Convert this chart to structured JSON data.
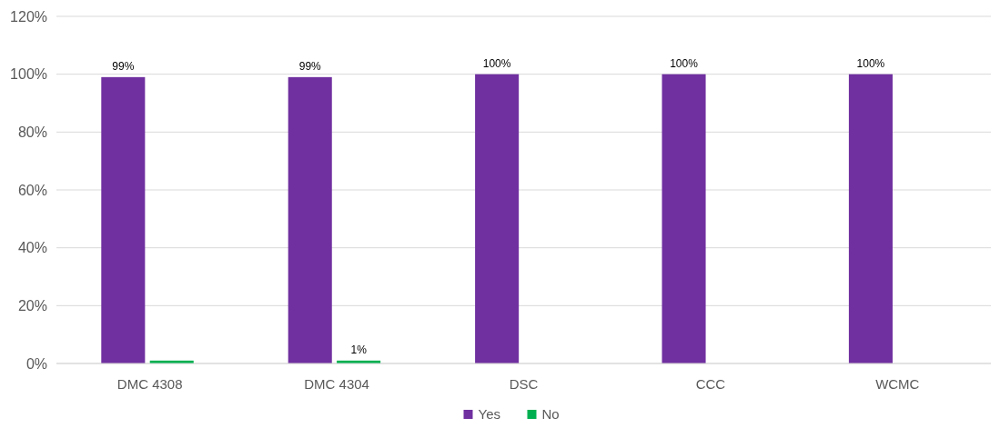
{
  "chart_data": {
    "type": "bar",
    "categories": [
      "DMC 4308",
      "DMC 4304",
      "DSC",
      "CCC",
      "WCMC"
    ],
    "series": [
      {
        "name": "Yes",
        "color": "#7030a0",
        "values": [
          99,
          99,
          100,
          100,
          100
        ],
        "value_labels": [
          "99%",
          "99%",
          "100%",
          "100%",
          "100%"
        ]
      },
      {
        "name": "No",
        "color": "#00b050",
        "values": [
          1,
          1,
          0,
          0,
          0
        ],
        "value_labels": [
          null,
          "1%",
          null,
          null,
          null
        ]
      }
    ],
    "ylim": [
      0,
      120
    ],
    "yticks": [
      {
        "value": 0,
        "label": "0%"
      },
      {
        "value": 20,
        "label": "20%"
      },
      {
        "value": 40,
        "label": "40%"
      },
      {
        "value": 60,
        "label": "60%"
      },
      {
        "value": 80,
        "label": "80%"
      },
      {
        "value": 100,
        "label": "100%"
      },
      {
        "value": 120,
        "label": "120%"
      }
    ],
    "grid": "y",
    "legend": "bottom"
  }
}
